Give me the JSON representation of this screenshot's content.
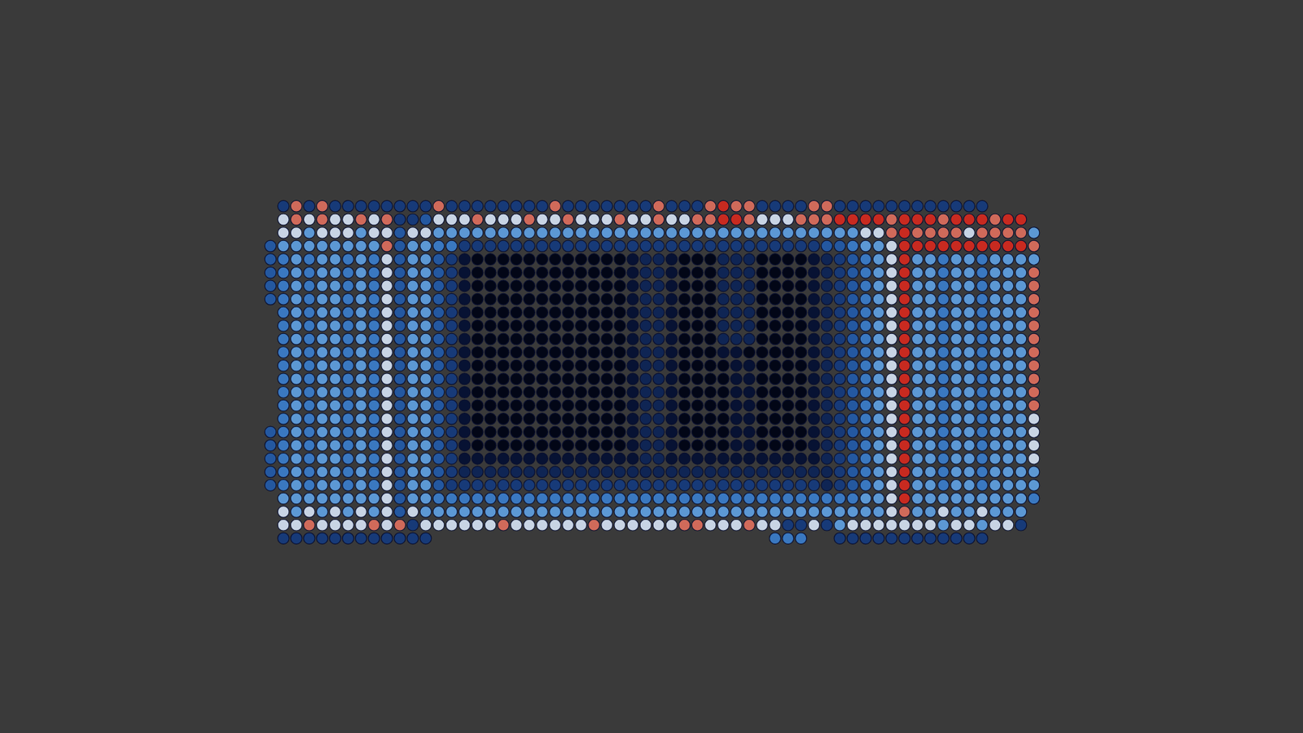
{
  "chart_data": {
    "type": "heatmap",
    "marker": "circle",
    "color_range": [
      0,
      9
    ],
    "cells": [
      [
        null,
        3,
        8,
        3,
        8,
        3,
        3,
        3,
        3,
        3,
        3,
        3,
        3,
        8,
        3,
        3,
        3,
        3,
        3,
        3,
        3,
        3,
        8,
        3,
        3,
        3,
        3,
        3,
        3,
        3,
        8,
        3,
        3,
        3,
        8,
        9,
        8,
        8,
        3,
        3,
        3,
        3,
        8,
        8,
        3,
        3,
        3,
        3,
        3,
        3,
        3,
        3,
        3,
        3,
        3,
        3,
        null,
        null,
        null,
        null
      ],
      [
        null,
        7,
        8,
        7,
        8,
        7,
        7,
        8,
        7,
        8,
        3,
        3,
        4,
        7,
        7,
        7,
        8,
        7,
        7,
        7,
        8,
        7,
        7,
        8,
        7,
        7,
        7,
        8,
        7,
        7,
        8,
        7,
        7,
        8,
        8,
        9,
        9,
        8,
        7,
        7,
        7,
        8,
        8,
        8,
        9,
        9,
        9,
        9,
        8,
        9,
        9,
        9,
        8,
        9,
        9,
        9,
        8,
        9,
        9,
        null
      ],
      [
        null,
        7,
        7,
        6,
        7,
        7,
        7,
        6,
        7,
        7,
        4,
        7,
        7,
        6,
        6,
        6,
        6,
        6,
        6,
        6,
        6,
        6,
        6,
        6,
        6,
        6,
        6,
        6,
        6,
        6,
        6,
        6,
        6,
        6,
        6,
        6,
        6,
        6,
        6,
        6,
        6,
        6,
        6,
        6,
        6,
        6,
        7,
        7,
        8,
        9,
        8,
        8,
        8,
        8,
        7,
        8,
        8,
        8,
        8,
        6
      ],
      [
        4,
        6,
        6,
        6,
        6,
        6,
        6,
        6,
        6,
        8,
        4,
        6,
        6,
        5,
        5,
        3,
        3,
        3,
        3,
        3,
        3,
        3,
        3,
        3,
        3,
        3,
        3,
        3,
        3,
        3,
        3,
        3,
        3,
        3,
        3,
        3,
        3,
        3,
        3,
        3,
        3,
        3,
        3,
        4,
        4,
        5,
        6,
        6,
        7,
        9,
        9,
        9,
        9,
        9,
        9,
        9,
        9,
        9,
        9,
        8
      ],
      [
        4,
        5,
        6,
        5,
        6,
        6,
        5,
        6,
        5,
        7,
        4,
        6,
        6,
        4,
        3,
        1,
        0,
        0,
        0,
        0,
        0,
        0,
        0,
        0,
        0,
        0,
        0,
        0,
        1,
        2,
        2,
        1,
        0,
        0,
        0,
        2,
        2,
        2,
        0,
        0,
        0,
        0,
        1,
        2,
        3,
        4,
        5,
        6,
        7,
        9,
        6,
        6,
        5,
        6,
        6,
        5,
        6,
        6,
        6,
        6
      ],
      [
        4,
        5,
        6,
        5,
        6,
        6,
        5,
        6,
        5,
        7,
        4,
        6,
        6,
        4,
        3,
        1,
        0,
        0,
        0,
        0,
        0,
        0,
        0,
        0,
        0,
        0,
        0,
        0,
        1,
        2,
        2,
        1,
        0,
        0,
        0,
        2,
        2,
        2,
        0,
        0,
        0,
        0,
        1,
        2,
        3,
        4,
        5,
        6,
        7,
        9,
        6,
        6,
        5,
        6,
        6,
        5,
        6,
        6,
        6,
        8
      ],
      [
        4,
        5,
        6,
        5,
        6,
        6,
        5,
        6,
        5,
        7,
        4,
        6,
        6,
        4,
        3,
        1,
        0,
        0,
        0,
        0,
        0,
        0,
        0,
        0,
        0,
        0,
        0,
        0,
        1,
        2,
        2,
        1,
        0,
        0,
        0,
        2,
        2,
        2,
        0,
        0,
        0,
        0,
        1,
        2,
        3,
        4,
        5,
        6,
        7,
        9,
        6,
        6,
        5,
        6,
        6,
        5,
        6,
        6,
        6,
        8
      ],
      [
        4,
        5,
        6,
        5,
        6,
        6,
        5,
        6,
        5,
        7,
        4,
        6,
        6,
        4,
        3,
        1,
        0,
        0,
        0,
        0,
        0,
        0,
        0,
        0,
        0,
        0,
        0,
        0,
        1,
        2,
        2,
        1,
        0,
        0,
        0,
        2,
        2,
        2,
        0,
        0,
        0,
        0,
        1,
        2,
        3,
        4,
        5,
        6,
        7,
        9,
        6,
        6,
        5,
        6,
        6,
        5,
        6,
        6,
        6,
        8
      ],
      [
        null,
        5,
        6,
        5,
        6,
        6,
        5,
        6,
        5,
        7,
        4,
        6,
        6,
        4,
        3,
        1,
        0,
        0,
        0,
        0,
        0,
        0,
        0,
        0,
        0,
        0,
        0,
        0,
        1,
        2,
        2,
        1,
        0,
        0,
        0,
        2,
        2,
        2,
        0,
        0,
        0,
        0,
        1,
        2,
        3,
        4,
        5,
        6,
        7,
        9,
        6,
        6,
        5,
        6,
        6,
        5,
        6,
        6,
        6,
        8
      ],
      [
        null,
        5,
        6,
        5,
        6,
        6,
        5,
        6,
        5,
        7,
        4,
        6,
        6,
        4,
        3,
        1,
        0,
        0,
        0,
        0,
        0,
        0,
        0,
        0,
        0,
        0,
        0,
        0,
        1,
        2,
        2,
        1,
        0,
        0,
        0,
        2,
        2,
        2,
        0,
        0,
        0,
        0,
        1,
        2,
        3,
        4,
        5,
        6,
        7,
        9,
        6,
        6,
        5,
        6,
        6,
        5,
        6,
        6,
        6,
        8
      ],
      [
        null,
        5,
        6,
        5,
        6,
        6,
        5,
        6,
        5,
        7,
        4,
        6,
        6,
        4,
        3,
        1,
        0,
        0,
        0,
        0,
        0,
        0,
        0,
        0,
        0,
        0,
        0,
        0,
        1,
        2,
        2,
        1,
        0,
        0,
        0,
        2,
        2,
        2,
        0,
        0,
        0,
        0,
        1,
        2,
        3,
        4,
        5,
        6,
        7,
        9,
        6,
        6,
        5,
        6,
        6,
        5,
        6,
        6,
        6,
        8
      ],
      [
        null,
        5,
        6,
        5,
        6,
        6,
        5,
        6,
        5,
        7,
        4,
        6,
        6,
        4,
        3,
        1,
        0,
        0,
        0,
        0,
        0,
        0,
        0,
        0,
        0,
        0,
        0,
        0,
        1,
        2,
        2,
        1,
        0,
        0,
        0,
        1,
        1,
        0,
        0,
        0,
        0,
        0,
        1,
        2,
        3,
        4,
        5,
        6,
        7,
        9,
        6,
        6,
        5,
        6,
        6,
        5,
        6,
        6,
        6,
        8
      ],
      [
        null,
        5,
        6,
        5,
        6,
        6,
        5,
        6,
        5,
        7,
        4,
        6,
        6,
        4,
        3,
        1,
        0,
        0,
        0,
        0,
        0,
        0,
        0,
        0,
        0,
        0,
        0,
        0,
        1,
        2,
        2,
        1,
        0,
        0,
        0,
        0,
        1,
        1,
        0,
        0,
        0,
        0,
        1,
        2,
        3,
        4,
        5,
        6,
        7,
        9,
        6,
        6,
        5,
        6,
        6,
        5,
        6,
        6,
        6,
        8
      ],
      [
        null,
        5,
        6,
        5,
        6,
        6,
        5,
        6,
        5,
        7,
        4,
        6,
        6,
        4,
        3,
        1,
        0,
        0,
        0,
        0,
        0,
        0,
        0,
        0,
        0,
        0,
        0,
        0,
        1,
        2,
        2,
        1,
        0,
        0,
        0,
        0,
        1,
        1,
        0,
        0,
        0,
        0,
        1,
        2,
        3,
        4,
        5,
        6,
        7,
        9,
        6,
        6,
        5,
        6,
        6,
        5,
        6,
        6,
        6,
        8
      ],
      [
        null,
        5,
        6,
        5,
        6,
        6,
        5,
        6,
        5,
        7,
        4,
        6,
        6,
        4,
        3,
        1,
        0,
        0,
        0,
        0,
        0,
        0,
        0,
        0,
        0,
        0,
        0,
        0,
        1,
        2,
        2,
        1,
        0,
        0,
        0,
        0,
        1,
        1,
        0,
        0,
        0,
        0,
        1,
        2,
        3,
        4,
        5,
        6,
        7,
        9,
        6,
        6,
        5,
        6,
        6,
        5,
        6,
        6,
        6,
        8
      ],
      [
        null,
        5,
        6,
        5,
        6,
        6,
        5,
        6,
        5,
        7,
        4,
        6,
        6,
        4,
        3,
        1,
        0,
        0,
        0,
        0,
        0,
        0,
        0,
        0,
        0,
        0,
        0,
        0,
        1,
        2,
        2,
        1,
        0,
        0,
        0,
        0,
        1,
        1,
        0,
        0,
        0,
        0,
        1,
        2,
        3,
        4,
        5,
        6,
        7,
        9,
        6,
        6,
        5,
        6,
        6,
        5,
        6,
        6,
        6,
        8
      ],
      [
        null,
        5,
        6,
        5,
        6,
        6,
        5,
        6,
        5,
        7,
        4,
        6,
        6,
        4,
        3,
        1,
        0,
        0,
        0,
        0,
        0,
        0,
        0,
        0,
        0,
        0,
        0,
        0,
        1,
        2,
        2,
        1,
        0,
        0,
        0,
        0,
        1,
        1,
        0,
        0,
        0,
        0,
        1,
        2,
        3,
        4,
        5,
        6,
        7,
        9,
        6,
        6,
        5,
        6,
        6,
        5,
        6,
        6,
        6,
        7
      ],
      [
        4,
        5,
        6,
        5,
        6,
        6,
        5,
        6,
        5,
        7,
        4,
        6,
        6,
        4,
        3,
        1,
        0,
        0,
        0,
        0,
        0,
        0,
        0,
        0,
        0,
        0,
        0,
        0,
        1,
        2,
        2,
        1,
        0,
        0,
        0,
        0,
        1,
        1,
        0,
        0,
        0,
        0,
        1,
        2,
        3,
        4,
        5,
        6,
        7,
        9,
        6,
        6,
        5,
        6,
        6,
        5,
        6,
        6,
        6,
        7
      ],
      [
        4,
        5,
        6,
        5,
        6,
        6,
        5,
        6,
        5,
        7,
        4,
        6,
        6,
        4,
        3,
        1,
        0,
        0,
        0,
        0,
        0,
        0,
        0,
        0,
        0,
        0,
        0,
        0,
        1,
        2,
        2,
        1,
        0,
        0,
        0,
        0,
        1,
        1,
        0,
        0,
        0,
        0,
        1,
        2,
        3,
        4,
        5,
        6,
        7,
        9,
        6,
        6,
        5,
        6,
        6,
        5,
        6,
        6,
        6,
        7
      ],
      [
        4,
        5,
        6,
        5,
        6,
        6,
        5,
        6,
        5,
        7,
        4,
        6,
        6,
        4,
        3,
        1,
        1,
        1,
        1,
        1,
        1,
        1,
        1,
        1,
        1,
        1,
        1,
        1,
        1,
        2,
        2,
        1,
        1,
        1,
        1,
        1,
        1,
        1,
        1,
        1,
        1,
        1,
        1,
        2,
        3,
        4,
        5,
        6,
        7,
        9,
        6,
        6,
        5,
        6,
        6,
        5,
        6,
        6,
        6,
        7
      ],
      [
        4,
        5,
        6,
        5,
        6,
        6,
        5,
        6,
        5,
        7,
        4,
        6,
        6,
        4,
        3,
        2,
        2,
        2,
        2,
        2,
        2,
        2,
        2,
        2,
        2,
        2,
        2,
        2,
        2,
        2,
        2,
        2,
        2,
        2,
        2,
        2,
        2,
        2,
        2,
        2,
        2,
        2,
        2,
        2,
        3,
        4,
        5,
        6,
        7,
        9,
        6,
        6,
        5,
        6,
        6,
        5,
        6,
        6,
        6,
        6
      ],
      [
        4,
        5,
        6,
        5,
        6,
        6,
        5,
        6,
        5,
        7,
        4,
        6,
        6,
        4,
        3,
        3,
        3,
        3,
        3,
        3,
        3,
        3,
        3,
        3,
        3,
        3,
        3,
        3,
        3,
        3,
        3,
        3,
        3,
        3,
        3,
        3,
        3,
        3,
        3,
        3,
        3,
        3,
        3,
        2,
        3,
        4,
        5,
        6,
        7,
        9,
        6,
        6,
        5,
        6,
        6,
        5,
        6,
        6,
        6,
        6
      ],
      [
        null,
        6,
        6,
        6,
        6,
        6,
        6,
        6,
        6,
        7,
        4,
        6,
        6,
        5,
        5,
        5,
        5,
        5,
        5,
        5,
        5,
        5,
        5,
        5,
        5,
        5,
        5,
        5,
        5,
        5,
        5,
        5,
        5,
        5,
        5,
        5,
        5,
        5,
        5,
        5,
        5,
        5,
        5,
        5,
        5,
        5,
        6,
        6,
        7,
        9,
        6,
        6,
        6,
        6,
        6,
        6,
        6,
        6,
        6,
        5
      ],
      [
        null,
        7,
        6,
        7,
        6,
        7,
        6,
        7,
        6,
        7,
        4,
        7,
        6,
        6,
        6,
        6,
        6,
        6,
        6,
        6,
        6,
        6,
        6,
        6,
        6,
        6,
        6,
        6,
        6,
        6,
        6,
        6,
        6,
        6,
        6,
        6,
        6,
        6,
        6,
        6,
        6,
        6,
        6,
        6,
        6,
        6,
        6,
        6,
        7,
        8,
        6,
        6,
        7,
        6,
        6,
        7,
        6,
        6,
        6,
        null
      ],
      [
        null,
        7,
        7,
        8,
        7,
        7,
        7,
        7,
        8,
        7,
        8,
        3,
        7,
        7,
        7,
        7,
        7,
        7,
        8,
        7,
        7,
        7,
        7,
        7,
        7,
        8,
        7,
        7,
        7,
        7,
        7,
        7,
        8,
        8,
        7,
        7,
        7,
        8,
        7,
        7,
        3,
        3,
        7,
        3,
        6,
        7,
        7,
        7,
        7,
        7,
        7,
        7,
        6,
        7,
        7,
        6,
        7,
        7,
        3,
        null
      ],
      [
        null,
        3,
        3,
        3,
        3,
        3,
        3,
        3,
        3,
        3,
        3,
        3,
        3,
        null,
        null,
        null,
        null,
        null,
        null,
        null,
        null,
        null,
        null,
        null,
        null,
        null,
        null,
        null,
        null,
        null,
        null,
        null,
        null,
        null,
        null,
        null,
        null,
        null,
        null,
        5,
        5,
        5,
        null,
        null,
        3,
        3,
        3,
        3,
        3,
        3,
        3,
        3,
        3,
        3,
        3,
        3,
        null,
        null,
        null,
        null
      ]
    ]
  }
}
